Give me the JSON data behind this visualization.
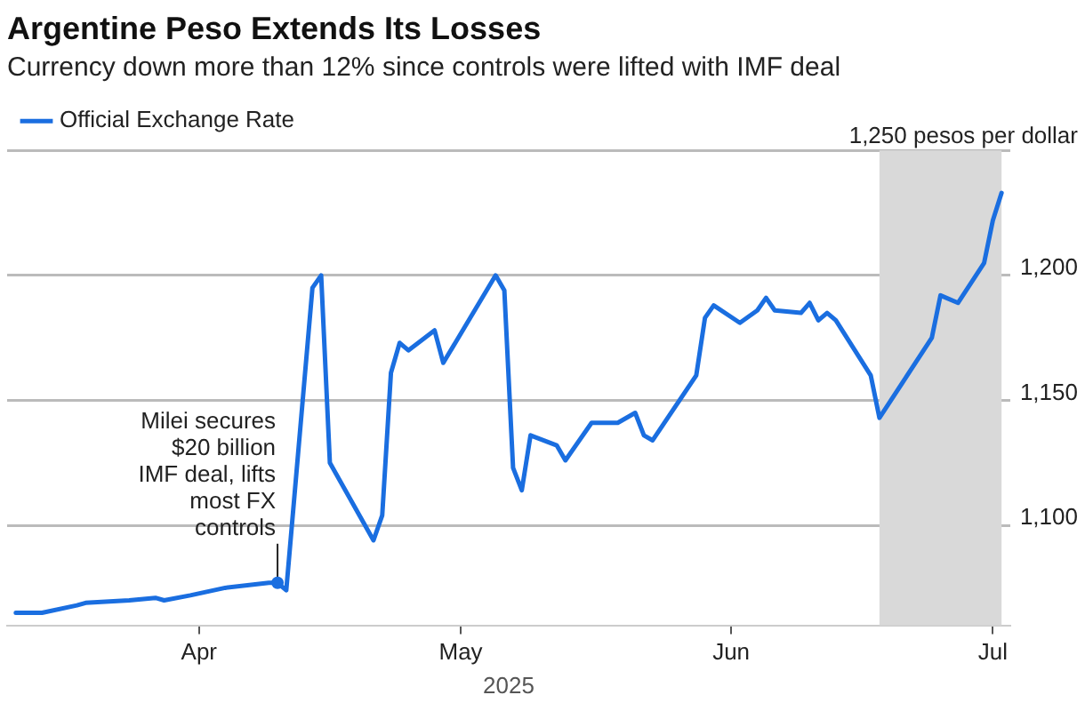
{
  "chart_data": {
    "type": "line",
    "title": "Argentine Peso Extends Its Losses",
    "subtitle": "Currency down more than 12% since controls were lifted with IMF deal",
    "xlabel": "2025",
    "x": [
      "2025-03-11",
      "2025-03-14",
      "2025-03-18",
      "2025-03-19",
      "2025-03-24",
      "2025-03-27",
      "2025-03-28",
      "2025-03-31",
      "2025-04-04",
      "2025-04-09",
      "2025-04-10",
      "2025-04-11",
      "2025-04-14",
      "2025-04-15",
      "2025-04-16",
      "2025-04-21",
      "2025-04-22",
      "2025-04-23",
      "2025-04-24",
      "2025-04-25",
      "2025-04-28",
      "2025-04-29",
      "2025-05-05",
      "2025-05-06",
      "2025-05-07",
      "2025-05-08",
      "2025-05-09",
      "2025-05-12",
      "2025-05-13",
      "2025-05-16",
      "2025-05-19",
      "2025-05-21",
      "2025-05-22",
      "2025-05-23",
      "2025-05-28",
      "2025-05-29",
      "2025-05-30",
      "2025-06-02",
      "2025-06-04",
      "2025-06-05",
      "2025-06-06",
      "2025-06-09",
      "2025-06-10",
      "2025-06-11",
      "2025-06-12",
      "2025-06-13",
      "2025-06-17",
      "2025-06-18",
      "2025-06-24",
      "2025-06-25",
      "2025-06-27",
      "2025-06-30",
      "2025-07-01",
      "2025-07-02"
    ],
    "series": [
      {
        "name": "Official Exchange Rate",
        "color": "#1a6ee0",
        "values": [
          1065,
          1065,
          1068,
          1069,
          1070,
          1071,
          1070,
          1072,
          1075,
          1077,
          1077,
          1074,
          1195,
          1200,
          1125,
          1094,
          1104,
          1161,
          1173,
          1170,
          1178,
          1165,
          1200,
          1194,
          1123,
          1114,
          1136,
          1132,
          1126,
          1141,
          1141,
          1145,
          1136,
          1134,
          1160,
          1183,
          1188,
          1181,
          1186,
          1191,
          1186,
          1185,
          1189,
          1182,
          1185,
          1182,
          1160,
          1143,
          1175,
          1192,
          1189,
          1205,
          1222,
          1233
        ]
      }
    ],
    "xlim": [
      "2025-03-10",
      "2025-07-03"
    ],
    "xticks": [
      {
        "value": "2025-04-01",
        "label": "Apr"
      },
      {
        "value": "2025-05-01",
        "label": "May"
      },
      {
        "value": "2025-06-01",
        "label": "Jun"
      },
      {
        "value": "2025-07-01",
        "label": "Jul"
      }
    ],
    "ylim": [
      1060,
      1250
    ],
    "yticks": [
      {
        "value": 1100,
        "label": "1,100"
      },
      {
        "value": 1150,
        "label": "1,150"
      },
      {
        "value": 1200,
        "label": "1,200"
      },
      {
        "value": 1250,
        "label": "1,250 pesos per dollar"
      }
    ],
    "bands": [
      {
        "axis": "x",
        "from": "2025-06-18",
        "to": "2025-07-02",
        "color": "#d9d9d9"
      }
    ],
    "annotations": [
      {
        "text": "Milei secures $20 billion IMF deal, lifts most FX controls",
        "x": "2025-04-10",
        "y": 1077
      }
    ],
    "grid": "y",
    "legend": "top left",
    "marker": "none",
    "line_style": "solid"
  }
}
